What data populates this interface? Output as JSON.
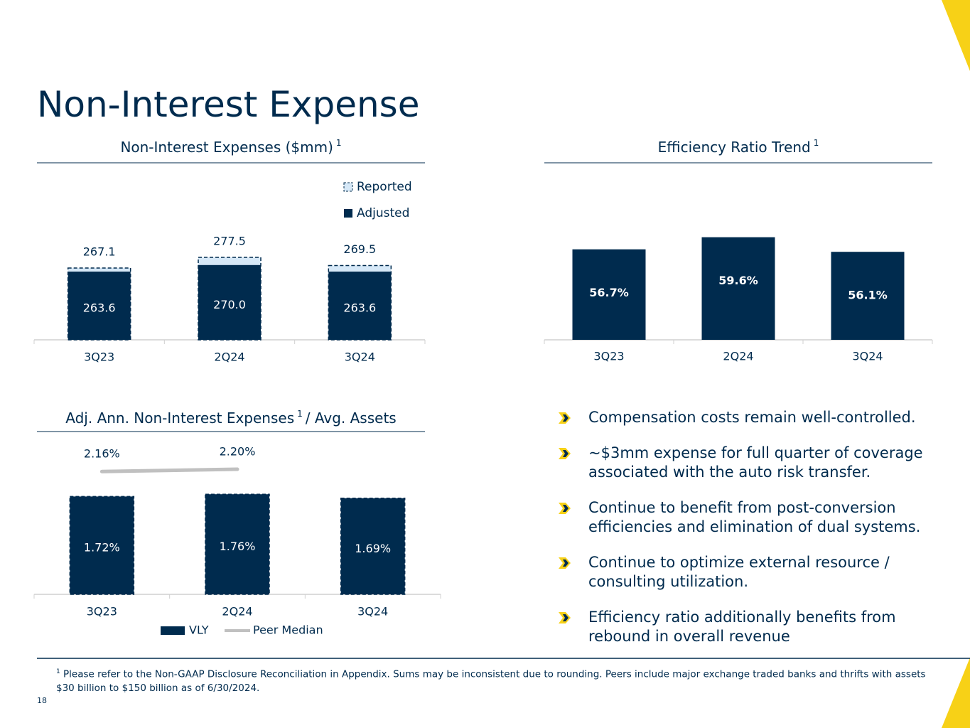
{
  "title": "Non-Interest Expense",
  "chart_data": [
    {
      "type": "bar",
      "title": "Non-Interest Expenses ($mm)",
      "title_note": "1",
      "categories": [
        "3Q23",
        "2Q24",
        "3Q24"
      ],
      "series": [
        {
          "name": "Reported",
          "color": "#d6e8f7",
          "values": [
            267.1,
            277.5,
            269.5
          ]
        },
        {
          "name": "Adjusted",
          "color": "#002b4e",
          "values": [
            263.6,
            270.0,
            263.6
          ],
          "value_labels": [
            "263.6",
            "270.0",
            "263.6"
          ]
        }
      ],
      "ylim": [
        197,
        290
      ],
      "legend": "top-right"
    },
    {
      "type": "bar",
      "title": "Efficiency Ratio Trend",
      "title_note": "1",
      "categories": [
        "3Q23",
        "2Q24",
        "3Q24"
      ],
      "values": [
        56.7,
        59.6,
        56.1
      ],
      "value_labels": [
        "56.7%",
        "59.6%",
        "56.1%"
      ],
      "color": "#002b4e",
      "ylim": [
        35,
        65
      ]
    },
    {
      "type": "bar",
      "title": "Adj. Ann. Non-Interest Expenses",
      "title_note": "1",
      "title_suffix": "/ Avg. Assets",
      "categories": [
        "3Q23",
        "2Q24",
        "3Q24"
      ],
      "series": [
        {
          "name": "VLY",
          "color": "#002b4e",
          "values": [
            1.72,
            1.76,
            1.69
          ],
          "value_labels": [
            "1.72%",
            "1.76%",
            "1.69%"
          ]
        },
        {
          "name": "Peer Median",
          "type": "line",
          "color": "#c0c0c0",
          "values": [
            2.16,
            2.2,
            null
          ],
          "value_labels": [
            "2.16%",
            "2.20%",
            null
          ]
        }
      ],
      "ylim": [
        0,
        2.4
      ],
      "legend": "bottom"
    }
  ],
  "bullets": [
    "Compensation costs remain well-controlled.",
    "~$3mm expense for full quarter of coverage associated with the auto risk transfer.",
    "Continue to benefit from post-conversion efficiencies and elimination of dual systems.",
    "Continue to optimize external resource / consulting utilization.",
    "Efficiency ratio additionally benefits from rebound in overall revenue"
  ],
  "footnote": {
    "mark": "1",
    "text": "Please refer to the Non-GAAP Disclosure Reconciliation in Appendix. Sums may be inconsistent due to rounding.  Peers include major exchange traded banks and thrifts with assets $30 billion to $150 billion as of 6/30/2024."
  },
  "page_number": "18"
}
